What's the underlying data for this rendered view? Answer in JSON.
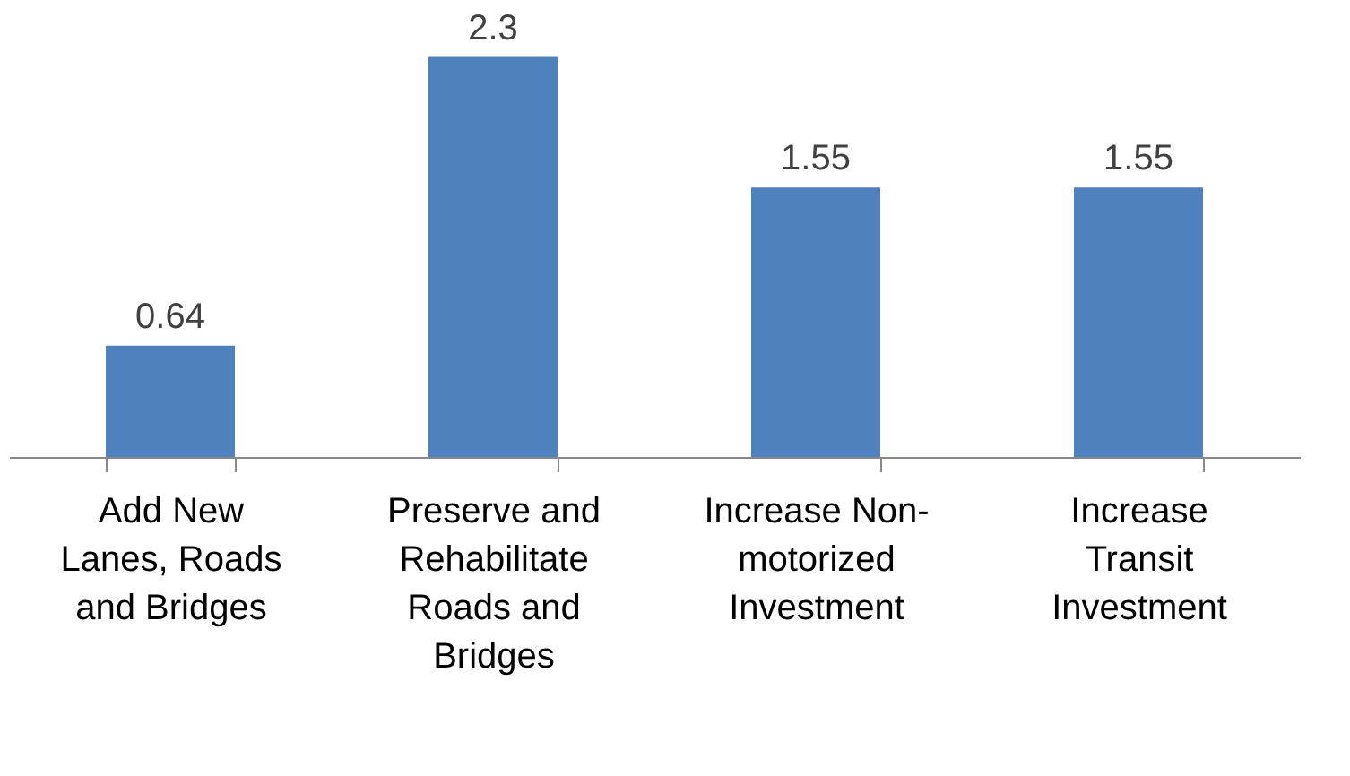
{
  "chart_data": {
    "type": "bar",
    "categories": [
      "Add New Lanes, Roads and Bridges",
      "Preserve and Rehabilitate Roads and Bridges",
      "Increase Non-motorized Investment",
      "Increase Transit Investment"
    ],
    "values": [
      0.64,
      2.3,
      1.55,
      1.55
    ],
    "color": "#4f81bd",
    "data_labels": true,
    "grid": false
  }
}
